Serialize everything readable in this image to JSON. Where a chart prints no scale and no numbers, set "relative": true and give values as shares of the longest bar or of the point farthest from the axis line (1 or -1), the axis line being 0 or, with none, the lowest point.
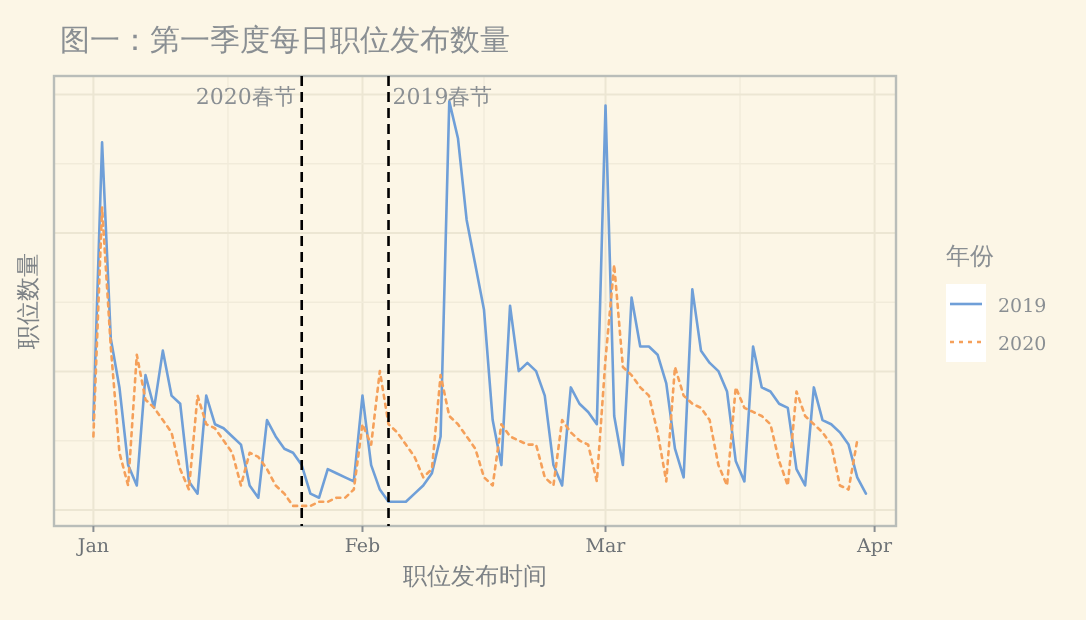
{
  "chart_data": {
    "type": "line",
    "title": "图一：第一季度每日职位发布数量",
    "xlabel": "职位发布时间",
    "ylabel": "职位数量",
    "legend_title": "年份",
    "relative": true,
    "grid": true,
    "legend": "right",
    "x": [
      "--01-01",
      "--01-02",
      "--01-03",
      "--01-04",
      "--01-05",
      "--01-06",
      "--01-07",
      "--01-08",
      "--01-09",
      "--01-10",
      "--01-11",
      "--01-12",
      "--01-13",
      "--01-14",
      "--01-15",
      "--01-16",
      "--01-17",
      "--01-18",
      "--01-19",
      "--01-20",
      "--01-21",
      "--01-22",
      "--01-23",
      "--01-24",
      "--01-25",
      "--01-26",
      "--01-27",
      "--01-28",
      "--01-29",
      "--01-30",
      "--01-31",
      "--02-01",
      "--02-02",
      "--02-03",
      "--02-04",
      "--02-05",
      "--02-06",
      "--02-07",
      "--02-08",
      "--02-09",
      "--02-10",
      "--02-11",
      "--02-12",
      "--02-13",
      "--02-14",
      "--02-15",
      "--02-16",
      "--02-17",
      "--02-18",
      "--02-19",
      "--02-20",
      "--02-21",
      "--02-22",
      "--02-23",
      "--02-24",
      "--02-25",
      "--02-26",
      "--02-27",
      "--02-28",
      "--03-01",
      "--03-02",
      "--03-03",
      "--03-04",
      "--03-05",
      "--03-06",
      "--03-07",
      "--03-08",
      "--03-09",
      "--03-10",
      "--03-11",
      "--03-12",
      "--03-13",
      "--03-14",
      "--03-15",
      "--03-16",
      "--03-17",
      "--03-18",
      "--03-19",
      "--03-20",
      "--03-21",
      "--03-22",
      "--03-23",
      "--03-24",
      "--03-25",
      "--03-26",
      "--03-27",
      "--03-28",
      "--03-29",
      "--03-30",
      "--03-31"
    ],
    "xlim": [
      "--01-01",
      "--04-01"
    ],
    "xticks": [
      {
        "value": "--01-01",
        "label": "Jan"
      },
      {
        "value": "--02-01",
        "label": "Feb"
      },
      {
        "value": "--03-01",
        "label": "Mar"
      },
      {
        "value": "--04-01",
        "label": "Apr"
      }
    ],
    "series": [
      {
        "name": "2019",
        "color": "#6f9fd8",
        "line_style": "solid",
        "values": [
          0.22,
          0.9,
          0.42,
          0.3,
          0.11,
          0.06,
          0.33,
          0.25,
          0.39,
          0.28,
          0.26,
          0.07,
          0.04,
          0.28,
          0.21,
          0.2,
          0.18,
          0.16,
          0.06,
          0.03,
          0.22,
          0.18,
          0.15,
          0.14,
          0.11,
          0.04,
          0.03,
          0.1,
          0.09,
          0.08,
          0.07,
          0.28,
          0.11,
          0.05,
          0.02,
          0.02,
          0.02,
          0.04,
          0.06,
          0.09,
          0.18,
          1.0,
          0.91,
          0.71,
          0.6,
          0.49,
          0.22,
          0.11,
          0.5,
          0.34,
          0.36,
          0.34,
          0.28,
          0.11,
          0.06,
          0.3,
          0.26,
          0.24,
          0.21,
          0.99,
          0.23,
          0.11,
          0.52,
          0.4,
          0.4,
          0.38,
          0.31,
          0.15,
          0.08,
          0.54,
          0.39,
          0.36,
          0.34,
          0.29,
          0.12,
          0.07,
          0.4,
          0.3,
          0.29,
          0.26,
          0.25,
          0.1,
          0.06,
          0.3,
          0.22,
          0.21,
          0.19,
          0.16,
          0.08,
          0.04
        ]
      },
      {
        "name": "2020",
        "color": "#f5a05a",
        "line_style": "dotted",
        "values": [
          0.18,
          0.74,
          0.4,
          0.14,
          0.06,
          0.38,
          0.27,
          0.25,
          0.22,
          0.19,
          0.1,
          0.05,
          0.28,
          0.21,
          0.2,
          0.17,
          0.14,
          0.06,
          0.14,
          0.13,
          0.1,
          0.06,
          0.04,
          0.01,
          0.01,
          0.01,
          0.02,
          0.02,
          0.03,
          0.03,
          0.05,
          0.21,
          0.16,
          0.34,
          0.21,
          0.19,
          0.16,
          0.13,
          0.08,
          0.1,
          0.33,
          0.23,
          0.21,
          0.18,
          0.15,
          0.08,
          0.06,
          0.21,
          0.18,
          0.17,
          0.16,
          0.16,
          0.08,
          0.06,
          0.22,
          0.19,
          0.17,
          0.16,
          0.07,
          0.37,
          0.6,
          0.35,
          0.33,
          0.3,
          0.28,
          0.19,
          0.07,
          0.35,
          0.28,
          0.26,
          0.25,
          0.22,
          0.11,
          0.06,
          0.3,
          0.25,
          0.24,
          0.23,
          0.21,
          0.12,
          0.06,
          0.29,
          0.23,
          0.21,
          0.19,
          0.16,
          0.06,
          0.05,
          0.17,
          null
        ]
      }
    ],
    "ref_lines": [
      {
        "axis": "x",
        "value": "--01-25",
        "label": "2020春节",
        "color": "#000000",
        "line_style": "dashed"
      },
      {
        "axis": "x",
        "value": "--02-04",
        "label": "2019春节",
        "color": "#000000",
        "line_style": "dashed"
      }
    ]
  }
}
